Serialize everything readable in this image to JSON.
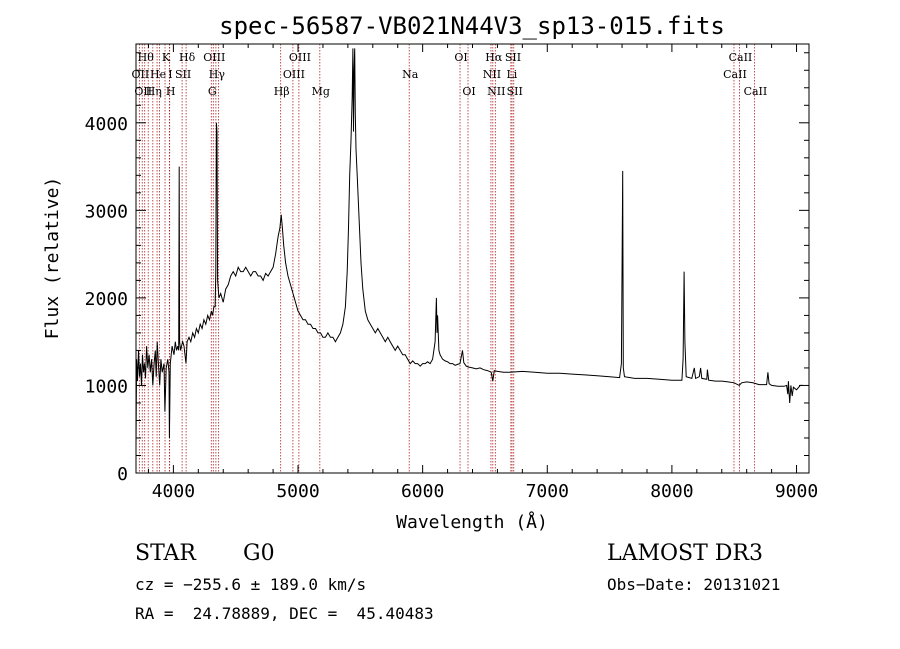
{
  "chart_data": {
    "type": "line",
    "title": "spec-56587-VB021N44V3_sp13-015.fits",
    "xlabel": "Wavelength (Å)",
    "ylabel": "Flux (relative)",
    "xlim": [
      3700,
      9100
    ],
    "ylim": [
      0,
      4900
    ],
    "xticks": [
      4000,
      5000,
      6000,
      7000,
      8000,
      9000
    ],
    "xtick_labels": [
      "4000",
      "5000",
      "6000",
      "7000",
      "8000",
      "9000"
    ],
    "yticks": [
      0,
      1000,
      2000,
      3000,
      4000
    ],
    "ytick_labels": [
      "0",
      "1000",
      "2000",
      "3000",
      "4000"
    ],
    "series": [
      {
        "name": "flux",
        "points": [
          [
            3700,
            300
          ],
          [
            3705,
            1300
          ],
          [
            3712,
            1050
          ],
          [
            3720,
            1400
          ],
          [
            3728,
            1100
          ],
          [
            3736,
            1250
          ],
          [
            3744,
            1000
          ],
          [
            3752,
            1350
          ],
          [
            3760,
            1150
          ],
          [
            3768,
            1250
          ],
          [
            3776,
            1080
          ],
          [
            3785,
            1450
          ],
          [
            3795,
            1200
          ],
          [
            3805,
            1350
          ],
          [
            3815,
            1150
          ],
          [
            3825,
            1300
          ],
          [
            3835,
            1000
          ],
          [
            3845,
            1250
          ],
          [
            3855,
            1400
          ],
          [
            3862,
            1100
          ],
          [
            3870,
            1500
          ],
          [
            3880,
            1250
          ],
          [
            3890,
            1000
          ],
          [
            3900,
            1300
          ],
          [
            3910,
            1150
          ],
          [
            3925,
            1250
          ],
          [
            3932,
            700
          ],
          [
            3942,
            1200
          ],
          [
            3955,
            1300
          ],
          [
            3965,
            1150
          ],
          [
            3968,
            400
          ],
          [
            3975,
            1250
          ],
          [
            3990,
            1450
          ],
          [
            4005,
            1350
          ],
          [
            4015,
            1500
          ],
          [
            4025,
            1400
          ],
          [
            4035,
            1450
          ],
          [
            4043,
            1400
          ],
          [
            4047,
            3500
          ],
          [
            4050,
            1500
          ],
          [
            4058,
            1400
          ],
          [
            4065,
            1450
          ],
          [
            4075,
            1500
          ],
          [
            4085,
            1450
          ],
          [
            4101,
            1250
          ],
          [
            4110,
            1500
          ],
          [
            4125,
            1550
          ],
          [
            4140,
            1500
          ],
          [
            4155,
            1600
          ],
          [
            4170,
            1550
          ],
          [
            4185,
            1650
          ],
          [
            4200,
            1600
          ],
          [
            4215,
            1700
          ],
          [
            4230,
            1650
          ],
          [
            4245,
            1750
          ],
          [
            4260,
            1700
          ],
          [
            4275,
            1800
          ],
          [
            4290,
            1750
          ],
          [
            4305,
            1850
          ],
          [
            4315,
            1800
          ],
          [
            4325,
            1900
          ],
          [
            4335,
            1900
          ],
          [
            4340,
            2300
          ],
          [
            4345,
            4000
          ],
          [
            4350,
            3900
          ],
          [
            4355,
            2200
          ],
          [
            4365,
            2000
          ],
          [
            4380,
            2050
          ],
          [
            4400,
            1950
          ],
          [
            4420,
            2100
          ],
          [
            4440,
            2150
          ],
          [
            4460,
            2250
          ],
          [
            4480,
            2300
          ],
          [
            4500,
            2250
          ],
          [
            4520,
            2350
          ],
          [
            4540,
            2300
          ],
          [
            4560,
            2300
          ],
          [
            4580,
            2350
          ],
          [
            4600,
            2300
          ],
          [
            4620,
            2250
          ],
          [
            4640,
            2300
          ],
          [
            4660,
            2300
          ],
          [
            4680,
            2250
          ],
          [
            4700,
            2250
          ],
          [
            4720,
            2200
          ],
          [
            4740,
            2280
          ],
          [
            4760,
            2250
          ],
          [
            4780,
            2300
          ],
          [
            4800,
            2350
          ],
          [
            4820,
            2500
          ],
          [
            4840,
            2700
          ],
          [
            4855,
            2800
          ],
          [
            4865,
            2950
          ],
          [
            4875,
            2800
          ],
          [
            4885,
            2600
          ],
          [
            4900,
            2400
          ],
          [
            4920,
            2250
          ],
          [
            4940,
            2150
          ],
          [
            4960,
            2050
          ],
          [
            4980,
            1950
          ],
          [
            5000,
            1850
          ],
          [
            5020,
            1800
          ],
          [
            5040,
            1750
          ],
          [
            5060,
            1750
          ],
          [
            5080,
            1700
          ],
          [
            5100,
            1700
          ],
          [
            5120,
            1650
          ],
          [
            5140,
            1650
          ],
          [
            5160,
            1600
          ],
          [
            5180,
            1600
          ],
          [
            5200,
            1550
          ],
          [
            5220,
            1550
          ],
          [
            5240,
            1600
          ],
          [
            5260,
            1550
          ],
          [
            5280,
            1550
          ],
          [
            5300,
            1500
          ],
          [
            5320,
            1550
          ],
          [
            5340,
            1600
          ],
          [
            5360,
            1700
          ],
          [
            5380,
            1900
          ],
          [
            5395,
            2300
          ],
          [
            5405,
            2800
          ],
          [
            5415,
            3400
          ],
          [
            5425,
            3800
          ],
          [
            5435,
            4300
          ],
          [
            5440,
            4850
          ],
          [
            5445,
            3900
          ],
          [
            5450,
            4600
          ],
          [
            5455,
            4850
          ],
          [
            5460,
            4100
          ],
          [
            5465,
            3700
          ],
          [
            5475,
            3400
          ],
          [
            5490,
            2900
          ],
          [
            5505,
            2400
          ],
          [
            5520,
            2100
          ],
          [
            5540,
            1850
          ],
          [
            5560,
            1750
          ],
          [
            5580,
            1700
          ],
          [
            5600,
            1650
          ],
          [
            5620,
            1600
          ],
          [
            5640,
            1650
          ],
          [
            5660,
            1600
          ],
          [
            5680,
            1550
          ],
          [
            5700,
            1500
          ],
          [
            5720,
            1550
          ],
          [
            5740,
            1500
          ],
          [
            5760,
            1450
          ],
          [
            5780,
            1400
          ],
          [
            5800,
            1450
          ],
          [
            5820,
            1400
          ],
          [
            5840,
            1350
          ],
          [
            5860,
            1350
          ],
          [
            5880,
            1300
          ],
          [
            5900,
            1250
          ],
          [
            5920,
            1280
          ],
          [
            5940,
            1250
          ],
          [
            5960,
            1250
          ],
          [
            5980,
            1220
          ],
          [
            6000,
            1250
          ],
          [
            6020,
            1250
          ],
          [
            6040,
            1270
          ],
          [
            6060,
            1250
          ],
          [
            6080,
            1300
          ],
          [
            6100,
            1500
          ],
          [
            6110,
            2000
          ],
          [
            6115,
            1600
          ],
          [
            6120,
            1800
          ],
          [
            6130,
            1400
          ],
          [
            6140,
            1350
          ],
          [
            6160,
            1300
          ],
          [
            6180,
            1280
          ],
          [
            6200,
            1270
          ],
          [
            6220,
            1250
          ],
          [
            6240,
            1250
          ],
          [
            6260,
            1230
          ],
          [
            6280,
            1240
          ],
          [
            6300,
            1250
          ],
          [
            6320,
            1400
          ],
          [
            6330,
            1260
          ],
          [
            6350,
            1220
          ],
          [
            6370,
            1210
          ],
          [
            6400,
            1200
          ],
          [
            6430,
            1190
          ],
          [
            6460,
            1200
          ],
          [
            6490,
            1180
          ],
          [
            6520,
            1170
          ],
          [
            6550,
            1150
          ],
          [
            6563,
            1050
          ],
          [
            6575,
            1170
          ],
          [
            6600,
            1160
          ],
          [
            6650,
            1150
          ],
          [
            6700,
            1150
          ],
          [
            6800,
            1160
          ],
          [
            6900,
            1150
          ],
          [
            7000,
            1140
          ],
          [
            7100,
            1140
          ],
          [
            7200,
            1130
          ],
          [
            7300,
            1120
          ],
          [
            7400,
            1110
          ],
          [
            7500,
            1100
          ],
          [
            7580,
            1090
          ],
          [
            7595,
            1250
          ],
          [
            7605,
            3450
          ],
          [
            7610,
            1200
          ],
          [
            7620,
            1100
          ],
          [
            7700,
            1080
          ],
          [
            7800,
            1080
          ],
          [
            7900,
            1070
          ],
          [
            8000,
            1060
          ],
          [
            8080,
            1060
          ],
          [
            8090,
            1300
          ],
          [
            8098,
            2300
          ],
          [
            8104,
            1500
          ],
          [
            8115,
            1100
          ],
          [
            8160,
            1080
          ],
          [
            8180,
            1200
          ],
          [
            8190,
            1080
          ],
          [
            8220,
            1100
          ],
          [
            8230,
            1200
          ],
          [
            8240,
            1080
          ],
          [
            8280,
            1070
          ],
          [
            8285,
            1180
          ],
          [
            8295,
            1060
          ],
          [
            8350,
            1050
          ],
          [
            8400,
            1050
          ],
          [
            8450,
            1040
          ],
          [
            8500,
            1030
          ],
          [
            8540,
            1000
          ],
          [
            8560,
            1030
          ],
          [
            8600,
            1040
          ],
          [
            8650,
            1030
          ],
          [
            8700,
            1010
          ],
          [
            8760,
            1010
          ],
          [
            8770,
            1150
          ],
          [
            8780,
            1020
          ],
          [
            8800,
            1000
          ],
          [
            8850,
            990
          ],
          [
            8900,
            990
          ],
          [
            8920,
            1000
          ],
          [
            8930,
            900
          ],
          [
            8935,
            1050
          ],
          [
            8945,
            800
          ],
          [
            8955,
            1000
          ],
          [
            8965,
            880
          ],
          [
            8975,
            980
          ],
          [
            9000,
            950
          ],
          [
            9030,
            1000
          ],
          [
            9050,
            1000
          ]
        ]
      }
    ],
    "reference_lines": [
      {
        "wavelength": 3727,
        "row": 1,
        "label": "OII"
      },
      {
        "wavelength": 3750,
        "row": 2,
        "label": "OII"
      },
      {
        "wavelength": 3770,
        "row": 0,
        "label": "Hθ"
      },
      {
        "wavelength": 3798,
        "row": 0,
        "label": ""
      },
      {
        "wavelength": 3835,
        "row": 2,
        "label": "Hη"
      },
      {
        "wavelength": 3869,
        "row": 1,
        "label": "He"
      },
      {
        "wavelength": 3889,
        "row": 0,
        "label": ""
      },
      {
        "wavelength": 3933,
        "row": 0,
        "label": "K"
      },
      {
        "wavelength": 3968,
        "row": 1,
        "label": "I"
      },
      {
        "wavelength": 3970,
        "row": 2,
        "label": "H"
      },
      {
        "wavelength": 4070,
        "row": 1,
        "label": "SII"
      },
      {
        "wavelength": 4102,
        "row": 0,
        "label": "Hδ"
      },
      {
        "wavelength": 4304,
        "row": 2,
        "label": "G"
      },
      {
        "wavelength": 4320,
        "row": 0,
        "label": "OIII"
      },
      {
        "wavelength": 4341,
        "row": 1,
        "label": "Hγ"
      },
      {
        "wavelength": 4363,
        "row": 0,
        "label": ""
      },
      {
        "wavelength": 4861,
        "row": 2,
        "label": "Hβ"
      },
      {
        "wavelength": 4959,
        "row": 1,
        "label": "OIII"
      },
      {
        "wavelength": 5007,
        "row": 0,
        "label": "OIII"
      },
      {
        "wavelength": 5175,
        "row": 2,
        "label": "Mg"
      },
      {
        "wavelength": 5892,
        "row": 1,
        "label": "Na"
      },
      {
        "wavelength": 6300,
        "row": 0,
        "label": "OI"
      },
      {
        "wavelength": 6364,
        "row": 2,
        "label": "OI"
      },
      {
        "wavelength": 6548,
        "row": 1,
        "label": "NII"
      },
      {
        "wavelength": 6563,
        "row": 0,
        "label": "Hα"
      },
      {
        "wavelength": 6583,
        "row": 2,
        "label": "NII"
      },
      {
        "wavelength": 6708,
        "row": 1,
        "label": "Li"
      },
      {
        "wavelength": 6717,
        "row": 0,
        "label": "SII"
      },
      {
        "wavelength": 6731,
        "row": 2,
        "label": "SII"
      },
      {
        "wavelength": 8498,
        "row": 1,
        "label": "CaII"
      },
      {
        "wavelength": 8542,
        "row": 0,
        "label": "CaII"
      },
      {
        "wavelength": 8662,
        "row": 2,
        "label": "CaII"
      }
    ]
  },
  "footer": {
    "class_label": "STAR",
    "subclass": "G0",
    "survey": "LAMOST DR3",
    "cz": "cz = −255.6 ± 189.0 km/s",
    "obs_date": "Obs−Date: 20131021",
    "coords": "RA =  24.78889, DEC =  45.40483"
  },
  "colors": {
    "axis": "#000000",
    "spectrum": "#000000",
    "reference_line": "#b22222"
  }
}
